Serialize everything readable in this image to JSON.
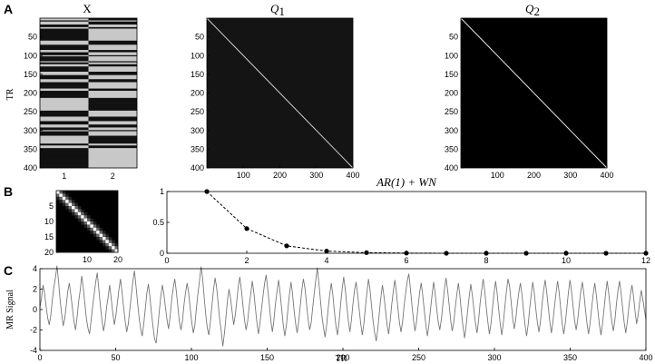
{
  "figure": {
    "panel_labels": [
      "A",
      "B",
      "C"
    ]
  },
  "chart_data": [
    {
      "id": "design-matrix",
      "type": "heatmap",
      "title": "X",
      "ylabel": "TR",
      "x_ticks": [
        "1",
        "2"
      ],
      "y_ticks": [
        "50",
        "100",
        "150",
        "200",
        "250",
        "300",
        "350",
        "400"
      ],
      "rows": 400,
      "columns": 2
    },
    {
      "id": "q1",
      "type": "heatmap",
      "title_main": "Q",
      "title_sub": "1",
      "x_ticks": [
        "100",
        "200",
        "300",
        "400"
      ],
      "y_ticks": [
        "50",
        "100",
        "150",
        "200",
        "250",
        "300",
        "350",
        "400"
      ],
      "size": 400,
      "background": "#141414",
      "diagonal_color": "#cfcfcf"
    },
    {
      "id": "q2",
      "type": "heatmap",
      "title_main": "Q",
      "title_sub": "2",
      "x_ticks": [
        "100",
        "200",
        "300",
        "400"
      ],
      "y_ticks": [
        "50",
        "100",
        "150",
        "200",
        "250",
        "300",
        "350",
        "400"
      ],
      "size": 400,
      "background": "#000000",
      "diagonal_color": "#e6e6e6"
    },
    {
      "id": "small-covariance",
      "type": "heatmap",
      "x_ticks": [
        "10",
        "20"
      ],
      "y_ticks": [
        "5",
        "10",
        "15",
        "20"
      ],
      "size": 20,
      "band_values": [
        1.0,
        0.4,
        0.12
      ]
    },
    {
      "id": "autocorrelation",
      "type": "line",
      "title": "AR(1) + WN",
      "x": [
        1,
        2,
        3,
        4,
        5,
        6,
        7,
        8,
        9,
        10,
        11,
        12
      ],
      "y": [
        1.0,
        0.4,
        0.12,
        0.035,
        0.01,
        0.003,
        0.0,
        0.0,
        0.0,
        0.0,
        0.0,
        0.0
      ],
      "xlim": [
        0,
        12
      ],
      "ylim": [
        0,
        1
      ],
      "x_ticks": [
        "0",
        "2",
        "4",
        "6",
        "8",
        "10",
        "12"
      ],
      "y_ticks": [
        "0",
        "0.5",
        "1"
      ]
    },
    {
      "id": "mr-signal",
      "type": "line",
      "xlabel": "TR",
      "ylabel": "MR Signal",
      "xlim": [
        0,
        400
      ],
      "ylim": [
        -4,
        4
      ],
      "x_ticks": [
        "0",
        "50",
        "100",
        "150",
        "200",
        "250",
        "300",
        "350",
        "400"
      ],
      "y_ticks": [
        "-4",
        "-2",
        "0",
        "2",
        "4"
      ],
      "y": [
        0.2,
        1.1,
        2.4,
        1.6,
        0.3,
        -0.8,
        -1.5,
        -0.6,
        0.9,
        2.2,
        3.1,
        4.3,
        2.8,
        1.0,
        -0.4,
        -1.6,
        -0.9,
        0.4,
        1.8,
        2.6,
        1.4,
        0.1,
        -1.2,
        -2.0,
        -0.7,
        0.8,
        1.9,
        3.3,
        2.1,
        0.6,
        -0.9,
        -1.8,
        -2.4,
        -1.1,
        0.3,
        1.5,
        2.7,
        3.6,
        2.0,
        0.4,
        -1.0,
        -2.1,
        -1.3,
        0.2,
        1.2,
        2.4,
        1.1,
        -0.3,
        -1.5,
        -0.6,
        0.7,
        2.0,
        3.0,
        1.7,
        0.2,
        -1.1,
        -2.2,
        -1.4,
        0.0,
        1.4,
        2.8,
        3.8,
        2.3,
        0.7,
        -0.8,
        -1.9,
        -2.6,
        -1.4,
        0.1,
        1.6,
        2.5,
        1.2,
        -0.4,
        -1.7,
        -2.9,
        -3.3,
        -1.8,
        -0.2,
        1.3,
        2.4,
        1.5,
        0.2,
        -1.0,
        -1.9,
        -0.7,
        0.9,
        2.1,
        3.0,
        1.8,
        0.3,
        -1.2,
        -2.0,
        -1.1,
        0.5,
        1.7,
        2.6,
        1.6,
        0.1,
        -1.3,
        -2.3,
        -1.5,
        0.2,
        1.6,
        2.9,
        4.2,
        3.0,
        1.2,
        -0.5,
        -1.8,
        -2.5,
        -1.2,
        0.4,
        1.9,
        3.1,
        2.2,
        0.6,
        -1.0,
        -2.1,
        -3.6,
        -2.4,
        -0.8,
        0.9,
        2.0,
        1.1,
        -0.2,
        -1.5,
        -0.6,
        0.8,
        2.3,
        3.2,
        1.9,
        0.4,
        -1.0,
        -2.0,
        -1.2,
        0.3,
        1.5,
        2.8,
        1.7,
        0.2,
        -1.3,
        -2.4,
        -1.3,
        0.1,
        1.4,
        2.6,
        3.4,
        2.0,
        0.5,
        -1.1,
        -2.2,
        -1.0,
        0.6,
        1.8,
        2.9,
        1.6,
        0.0,
        -1.5,
        -2.6,
        -1.6,
        0.0,
        1.5,
        2.7,
        1.5,
        -0.1,
        -1.4,
        -2.3,
        -1.1,
        0.4,
        1.9,
        3.0,
        2.1,
        0.6,
        -0.9,
        -2.0,
        -1.3,
        0.2,
        1.6,
        2.9,
        4.1,
        2.6,
        0.9,
        -0.7,
        -1.8,
        -2.7,
        -1.5,
        0.1,
        1.5,
        2.6,
        1.4,
        -0.2,
        -1.6,
        -2.5,
        -1.2,
        0.5,
        2.0,
        3.2,
        2.0,
        0.4,
        -1.1,
        -2.2,
        -1.0,
        0.6,
        1.9,
        2.7,
        1.5,
        0.0,
        -1.4,
        -2.5,
        -1.4,
        0.2,
        1.7,
        3.0,
        1.9,
        0.3,
        -1.2,
        -2.3,
        -3.1,
        -1.9,
        -0.3,
        1.2,
        2.4,
        1.3,
        -0.1,
        -1.5,
        -2.4,
        -1.1,
        0.5,
        1.8,
        2.9,
        1.7,
        0.1,
        -1.3,
        -2.2,
        -1.2,
        0.4,
        1.6,
        2.8,
        3.5,
        2.1,
        0.5,
        -1.0,
        -2.1,
        -1.2,
        0.3,
        1.7,
        2.6,
        1.4,
        -0.1,
        -1.5,
        -2.6,
        -1.5,
        0.0,
        1.4,
        2.7,
        1.6,
        0.1,
        -1.2,
        -2.0,
        -1.0,
        0.5,
        2.0,
        3.1,
        2.0,
        0.5,
        -1.0,
        -2.1,
        -1.3,
        0.2,
        1.5,
        2.6,
        1.3,
        -0.3,
        -1.7,
        -2.8,
        -1.6,
        -0.1,
        1.3,
        2.5,
        1.4,
        0.0,
        -1.3,
        -2.3,
        -1.1,
        0.6,
        1.9,
        3.0,
        1.8,
        0.2,
        -1.2,
        -2.4,
        -1.4,
        0.1,
        1.6,
        2.8,
        1.6,
        0.0,
        -1.4,
        -2.5,
        -1.3,
        0.3,
        1.8,
        3.0,
        2.3,
        0.8,
        -0.8,
        -1.9,
        -1.0,
        0.5,
        1.7,
        2.6,
        1.5,
        -0.1,
        -1.5,
        -2.6,
        -1.5,
        0.1,
        1.5,
        2.7,
        1.6,
        0.0,
        -1.3,
        -2.2,
        -1.1,
        0.5,
        1.9,
        2.9,
        1.7,
        0.2,
        -1.2,
        -2.3,
        -1.2,
        0.3,
        1.6,
        2.8,
        1.7,
        0.1,
        -1.4,
        -2.4,
        -1.3,
        0.2,
        1.7,
        2.9,
        1.8,
        0.3,
        -1.1,
        -2.0,
        -1.0,
        0.5,
        1.8,
        2.7,
        1.5,
        0.0,
        -1.4,
        -2.4,
        -1.3,
        0.2,
        1.5,
        2.6,
        1.4,
        -0.1,
        -1.5,
        -2.5,
        -1.4,
        0.1,
        1.6,
        2.8,
        1.6,
        0.1,
        -1.2,
        -2.1,
        -1.0,
        0.6,
        1.9,
        2.8,
        1.6,
        0.1,
        -1.3,
        -2.3,
        -1.2,
        0.3,
        1.5,
        2.4,
        1.3,
        -0.2,
        -1.4,
        -0.5,
        0.8,
        1.9,
        1.0,
        0.0,
        -1.0
      ]
    }
  ]
}
